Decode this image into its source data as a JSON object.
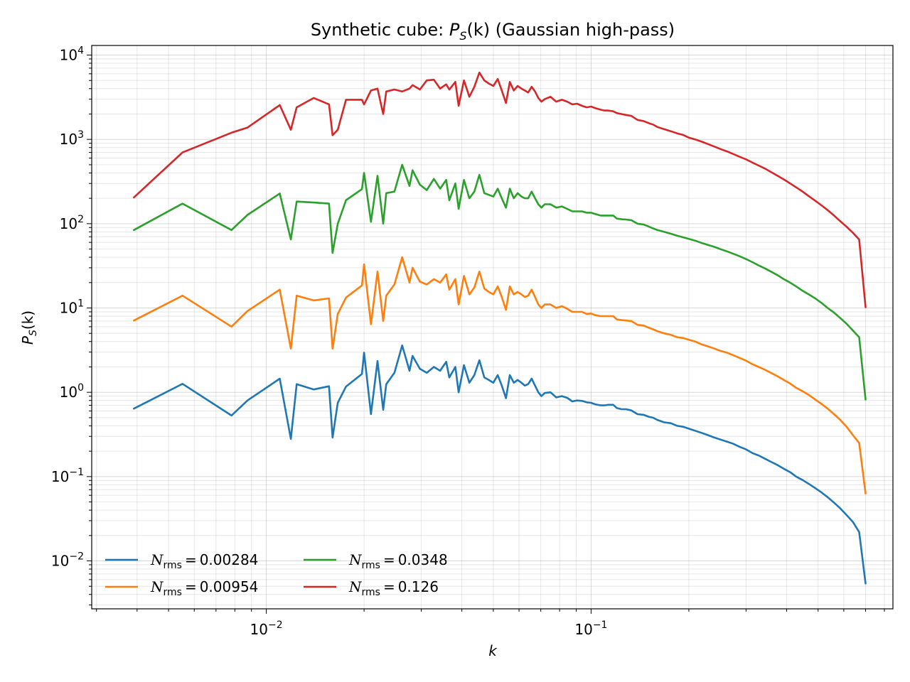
{
  "chart_data": {
    "type": "line",
    "title": "Synthetic cube: P_S(k) (Gaussian high-pass)",
    "title_parts": {
      "pre": "Synthetic cube: ",
      "P": "P",
      "S": "S",
      "arg": "(k)",
      "post": " (Gaussian high-pass)"
    },
    "xlabel": "k",
    "ylabel": "P_S(k)",
    "x_scale": "log",
    "y_scale": "log",
    "xlim": [
      0.0029,
      0.85
    ],
    "ylim": [
      0.0027,
      13000
    ],
    "grid": "major and minor",
    "x_major_ticks": [
      0.01,
      0.1
    ],
    "x_tick_labels": [
      "10^-2",
      "10^-1"
    ],
    "y_major_ticks": [
      0.01,
      0.1,
      1,
      10,
      100,
      1000,
      10000
    ],
    "y_tick_labels": [
      "10^-2",
      "10^-1",
      "10^0",
      "10^1",
      "10^2",
      "10^3",
      "10^4"
    ],
    "legend": {
      "placement": "lower-left",
      "columns": 2,
      "symbol": "N",
      "subscript": "rms"
    },
    "x": [
      0.00391,
      0.00552,
      0.00781,
      0.00875,
      0.011,
      0.0119,
      0.0124,
      0.014,
      0.0156,
      0.016,
      0.0166,
      0.0176,
      0.0197,
      0.02,
      0.021,
      0.022,
      0.0229,
      0.0234,
      0.0248,
      0.0262,
      0.0276,
      0.0282,
      0.0297,
      0.0312,
      0.0328,
      0.0343,
      0.0358,
      0.0366,
      0.0382,
      0.0391,
      0.0406,
      0.0422,
      0.0437,
      0.0453,
      0.0469,
      0.0484,
      0.05,
      0.0516,
      0.0531,
      0.0547,
      0.0562,
      0.0578,
      0.0594,
      0.061,
      0.0625,
      0.064,
      0.0656,
      0.0672,
      0.0688,
      0.0703,
      0.072,
      0.075,
      0.0781,
      0.0813,
      0.0844,
      0.0875,
      0.0906,
      0.0938,
      0.0969,
      0.1,
      0.103,
      0.107,
      0.11,
      0.113,
      0.117,
      0.12,
      0.124,
      0.128,
      0.133,
      0.139,
      0.145,
      0.151,
      0.155,
      0.16,
      0.168,
      0.176,
      0.184,
      0.192,
      0.2,
      0.209,
      0.219,
      0.229,
      0.24,
      0.25,
      0.262,
      0.274,
      0.287,
      0.3,
      0.314,
      0.328,
      0.343,
      0.358,
      0.375,
      0.392,
      0.41,
      0.428,
      0.448,
      0.468,
      0.49,
      0.512,
      0.535,
      0.56,
      0.585,
      0.612,
      0.64,
      0.669,
      0.7
    ],
    "series": [
      {
        "name": "0.00284",
        "color": "#1f77b4",
        "values": [
          0.64,
          1.26,
          0.53,
          0.8,
          1.45,
          0.28,
          1.25,
          1.08,
          1.18,
          0.29,
          0.75,
          1.17,
          1.65,
          2.95,
          0.55,
          2.35,
          0.62,
          1.25,
          1.7,
          3.6,
          1.8,
          2.7,
          1.9,
          1.7,
          2.0,
          1.8,
          2.3,
          1.5,
          2.0,
          1.0,
          2.1,
          1.3,
          1.6,
          2.4,
          1.5,
          1.4,
          1.3,
          1.6,
          1.2,
          0.85,
          1.6,
          1.3,
          1.4,
          1.3,
          1.2,
          1.25,
          1.45,
          1.2,
          1.0,
          0.9,
          0.98,
          1.0,
          0.87,
          0.9,
          0.86,
          0.78,
          0.8,
          0.79,
          0.76,
          0.75,
          0.72,
          0.7,
          0.7,
          0.71,
          0.71,
          0.65,
          0.63,
          0.63,
          0.61,
          0.55,
          0.54,
          0.51,
          0.5,
          0.47,
          0.44,
          0.43,
          0.4,
          0.39,
          0.37,
          0.35,
          0.33,
          0.31,
          0.29,
          0.275,
          0.26,
          0.245,
          0.225,
          0.21,
          0.19,
          0.178,
          0.163,
          0.15,
          0.137,
          0.124,
          0.113,
          0.1,
          0.091,
          0.082,
          0.073,
          0.065,
          0.057,
          0.049,
          0.042,
          0.035,
          0.029,
          0.022,
          0.0054
        ]
      },
      {
        "name": "0.00954",
        "color": "#ff7f0e",
        "values": [
          7.1,
          14.0,
          6.0,
          9.2,
          16.5,
          3.3,
          14.0,
          12.3,
          13.0,
          3.3,
          8.5,
          13.3,
          18.5,
          33.0,
          6.4,
          27.0,
          7.0,
          14.0,
          19.0,
          40.0,
          20.0,
          30.0,
          20.5,
          19.0,
          22.0,
          20.0,
          25.0,
          16.5,
          22.0,
          11.0,
          24.0,
          14.5,
          17.5,
          27.0,
          17.0,
          15.5,
          14.5,
          18.0,
          13.5,
          9.5,
          18.0,
          14.5,
          15.5,
          14.5,
          13.5,
          14.0,
          16.5,
          13.5,
          11.0,
          10.0,
          11.0,
          11.0,
          10.0,
          10.5,
          9.8,
          9.0,
          9.0,
          9.0,
          8.5,
          8.6,
          8.2,
          8.0,
          8.0,
          8.0,
          8.0,
          7.3,
          7.2,
          7.1,
          7.0,
          6.3,
          6.2,
          5.8,
          5.6,
          5.3,
          5.0,
          4.8,
          4.5,
          4.4,
          4.2,
          4.0,
          3.7,
          3.5,
          3.3,
          3.1,
          2.95,
          2.75,
          2.55,
          2.37,
          2.15,
          2.0,
          1.85,
          1.7,
          1.55,
          1.4,
          1.27,
          1.13,
          1.03,
          0.93,
          0.82,
          0.73,
          0.64,
          0.55,
          0.47,
          0.39,
          0.31,
          0.25,
          0.063
        ]
      },
      {
        "name": "0.0348",
        "color": "#2ca02c",
        "values": [
          84.0,
          173.0,
          84.0,
          127.0,
          228.0,
          65.0,
          183.0,
          178.0,
          173.0,
          45.0,
          100.0,
          190.0,
          257.0,
          400.0,
          105.0,
          370.0,
          100.0,
          230.0,
          240.0,
          500.0,
          280.0,
          430.0,
          290.0,
          250.0,
          340.0,
          260.0,
          330.0,
          190.0,
          300.0,
          150.0,
          330.0,
          200.0,
          240.0,
          380.0,
          230.0,
          220.0,
          210.0,
          260.0,
          200.0,
          155.0,
          260.0,
          200.0,
          230.0,
          210.0,
          200.0,
          200.0,
          240.0,
          200.0,
          170.0,
          155.0,
          170.0,
          170.0,
          155.0,
          160.0,
          150.0,
          140.0,
          140.0,
          140.0,
          135.0,
          135.0,
          130.0,
          125.0,
          125.0,
          125.0,
          125.0,
          115.0,
          113.0,
          112.0,
          110.0,
          100.0,
          98.0,
          92.0,
          88.0,
          84.0,
          80.0,
          76.0,
          72.0,
          69.0,
          66.0,
          63.0,
          59.0,
          56.0,
          53.0,
          50.0,
          47.0,
          44.0,
          41.0,
          38.0,
          35.0,
          32.0,
          29.5,
          27.0,
          24.5,
          22.0,
          20.0,
          18.0,
          16.0,
          14.5,
          13.0,
          11.5,
          10.0,
          8.8,
          7.6,
          6.5,
          5.4,
          4.5,
          0.82
        ]
      },
      {
        "name": "0.126",
        "color": "#d62728",
        "values": [
          205.0,
          700.0,
          1200.0,
          1380.0,
          2550.0,
          1300.0,
          2400.0,
          3100.0,
          2600.0,
          1120.0,
          1300.0,
          2950.0,
          2950.0,
          2600.0,
          3800.0,
          4000.0,
          2000.0,
          3700.0,
          3900.0,
          3700.0,
          4000.0,
          4400.0,
          3900.0,
          5000.0,
          5100.0,
          4000.0,
          4500.0,
          3900.0,
          4800.0,
          2500.0,
          5000.0,
          3200.0,
          4200.0,
          6200.0,
          5000.0,
          4600.0,
          4300.0,
          5200.0,
          3800.0,
          2700.0,
          4800.0,
          3800.0,
          4300.0,
          4000.0,
          3800.0,
          3600.0,
          4200.0,
          3700.0,
          3100.0,
          2800.0,
          3000.0,
          3200.0,
          2800.0,
          2950.0,
          2800.0,
          2600.0,
          2650.0,
          2500.0,
          2400.0,
          2450.0,
          2350.0,
          2250.0,
          2200.0,
          2200.0,
          2150.0,
          2050.0,
          2000.0,
          1950.0,
          1900.0,
          1700.0,
          1650.0,
          1550.0,
          1500.0,
          1400.0,
          1320.0,
          1250.0,
          1180.0,
          1130.0,
          1050.0,
          1000.0,
          940.0,
          880.0,
          820.0,
          770.0,
          720.0,
          670.0,
          620.0,
          580.0,
          530.0,
          490.0,
          450.0,
          410.0,
          370.0,
          335.0,
          300.0,
          270.0,
          240.0,
          212.0,
          187.0,
          165.0,
          145.0,
          125.0,
          107.0,
          92.0,
          78.0,
          65.0,
          10.2
        ]
      }
    ]
  }
}
